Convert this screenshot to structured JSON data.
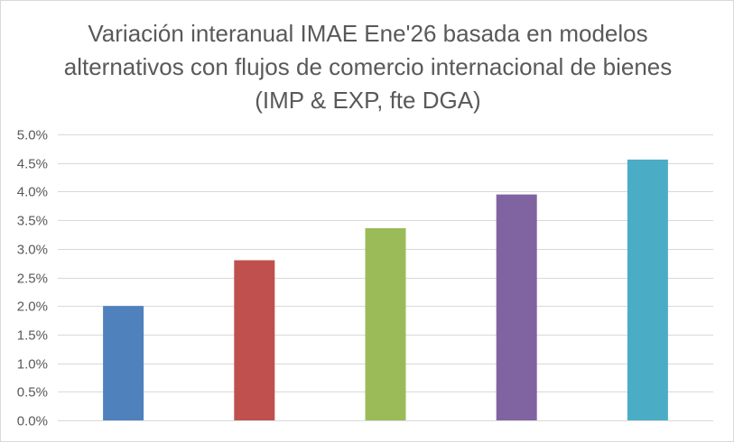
{
  "chart_data": {
    "type": "bar",
    "title": "Variación interanual IMAE Ene'26 basada en modelos alternativos con flujos de comercio internacional de bienes (IMP & EXP, fte DGA)",
    "xlabel": "",
    "ylabel": "",
    "categories": [
      "",
      "",
      "",
      "",
      ""
    ],
    "values": [
      0.02,
      0.028,
      0.0336,
      0.0395,
      0.0456
    ],
    "colors": [
      "#4f81bd",
      "#c0504d",
      "#9bbb59",
      "#8064a2",
      "#4bacc6"
    ],
    "ylim": [
      0,
      0.05
    ],
    "y_ticks": [
      0.0,
      0.005,
      0.01,
      0.015,
      0.02,
      0.025,
      0.03,
      0.035,
      0.04,
      0.045,
      0.05
    ],
    "y_tick_labels": [
      "0.0%",
      "0.5%",
      "1.0%",
      "1.5%",
      "2.0%",
      "2.5%",
      "3.0%",
      "3.5%",
      "4.0%",
      "4.5%",
      "5.0%"
    ],
    "grid": true,
    "legend": "none"
  }
}
